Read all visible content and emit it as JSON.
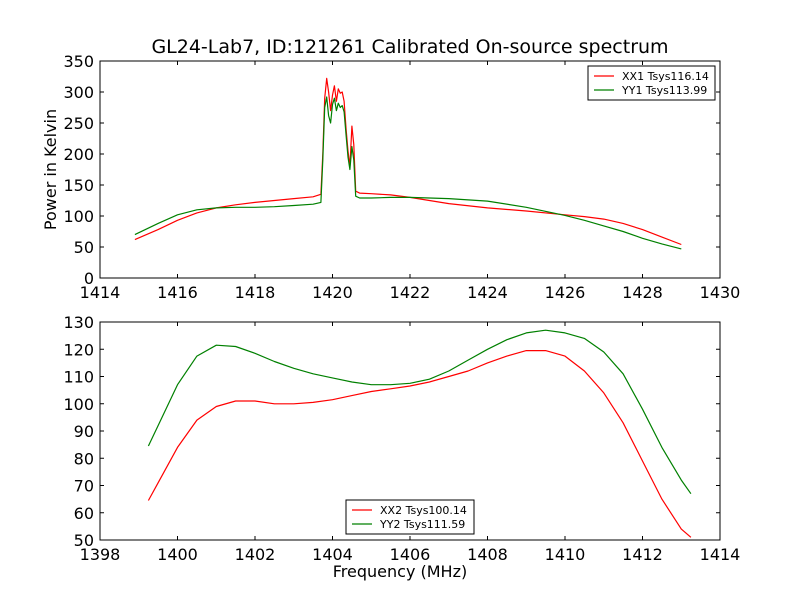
{
  "figure": {
    "title": "GL24-Lab7, ID:121261 Calibrated On-source spectrum"
  },
  "chart_data": [
    {
      "type": "line",
      "title": "GL24-Lab7, ID:121261 Calibrated On-source spectrum",
      "xlabel": "",
      "ylabel": "Power in Kelvin",
      "xlim": [
        1414,
        1430
      ],
      "ylim": [
        0,
        350
      ],
      "xticks": [
        1414,
        1416,
        1418,
        1420,
        1422,
        1424,
        1426,
        1428,
        1430
      ],
      "yticks": [
        0,
        50,
        100,
        150,
        200,
        250,
        300,
        350
      ],
      "grid": false,
      "legend_position": "top-right",
      "series": [
        {
          "name": "XX1 Tsys116.14",
          "color": "#ff0000",
          "x": [
            1414.9,
            1415.5,
            1416.0,
            1416.5,
            1417.0,
            1417.5,
            1418.0,
            1418.5,
            1419.0,
            1419.5,
            1419.7,
            1419.75,
            1419.8,
            1419.85,
            1419.9,
            1419.95,
            1420.0,
            1420.05,
            1420.1,
            1420.15,
            1420.2,
            1420.25,
            1420.3,
            1420.35,
            1420.4,
            1420.45,
            1420.5,
            1420.55,
            1420.6,
            1420.7,
            1421.0,
            1421.5,
            1422.0,
            1422.5,
            1423.0,
            1424.0,
            1425.0,
            1426.0,
            1426.5,
            1427.0,
            1427.5,
            1428.0,
            1428.5,
            1429.0
          ],
          "y": [
            62,
            78,
            93,
            105,
            113,
            118,
            122,
            125,
            128,
            131,
            135,
            200,
            290,
            322,
            300,
            270,
            295,
            310,
            285,
            305,
            298,
            300,
            285,
            240,
            205,
            180,
            245,
            215,
            140,
            137,
            136,
            134,
            130,
            125,
            120,
            113,
            108,
            102,
            99,
            95,
            88,
            78,
            66,
            54
          ]
        },
        {
          "name": "YY1 Tsys113.99",
          "color": "#008000",
          "x": [
            1414.9,
            1415.5,
            1416.0,
            1416.5,
            1417.0,
            1417.5,
            1418.0,
            1418.5,
            1419.0,
            1419.5,
            1419.7,
            1419.75,
            1419.8,
            1419.85,
            1419.9,
            1419.95,
            1420.0,
            1420.05,
            1420.1,
            1420.15,
            1420.2,
            1420.25,
            1420.3,
            1420.35,
            1420.4,
            1420.45,
            1420.5,
            1420.55,
            1420.6,
            1420.7,
            1421.0,
            1421.5,
            1422.0,
            1422.5,
            1423.0,
            1424.0,
            1425.0,
            1426.0,
            1426.5,
            1427.0,
            1427.5,
            1428.0,
            1428.5,
            1429.0
          ],
          "y": [
            70,
            88,
            102,
            110,
            113,
            114,
            114,
            115,
            117,
            119,
            122,
            190,
            275,
            292,
            262,
            250,
            280,
            290,
            270,
            282,
            275,
            278,
            268,
            230,
            195,
            175,
            212,
            190,
            132,
            129,
            129,
            130,
            130,
            129,
            128,
            124,
            114,
            101,
            93,
            84,
            75,
            64,
            55,
            47
          ]
        }
      ]
    },
    {
      "type": "line",
      "title": "",
      "xlabel": "Frequency (MHz)",
      "ylabel": "",
      "xlim": [
        1398,
        1414
      ],
      "ylim": [
        50,
        130
      ],
      "xticks": [
        1398,
        1400,
        1402,
        1404,
        1406,
        1408,
        1410,
        1412,
        1414
      ],
      "yticks": [
        50,
        60,
        70,
        80,
        90,
        100,
        110,
        120,
        130
      ],
      "grid": false,
      "legend_position": "bottom-center",
      "series": [
        {
          "name": "XX2 Tsys100.14",
          "color": "#ff0000",
          "x": [
            1399.25,
            1399.5,
            1400.0,
            1400.5,
            1401.0,
            1401.5,
            1402.0,
            1402.5,
            1403.0,
            1403.5,
            1404.0,
            1404.5,
            1405.0,
            1405.5,
            1406.0,
            1406.5,
            1407.0,
            1407.5,
            1408.0,
            1408.5,
            1409.0,
            1409.5,
            1410.0,
            1410.5,
            1411.0,
            1411.5,
            1412.0,
            1412.5,
            1413.0,
            1413.25
          ],
          "y": [
            64.5,
            71,
            84,
            94,
            99,
            101,
            101,
            100,
            100,
            100.5,
            101.5,
            103,
            104.5,
            105.5,
            106.5,
            108,
            110,
            112,
            115,
            117.5,
            119.5,
            119.5,
            117.5,
            112,
            104,
            93,
            79,
            65,
            54,
            51
          ]
        },
        {
          "name": "YY2 Tsys111.59",
          "color": "#008000",
          "x": [
            1399.25,
            1399.5,
            1400.0,
            1400.5,
            1401.0,
            1401.5,
            1402.0,
            1402.5,
            1403.0,
            1403.5,
            1404.0,
            1404.5,
            1405.0,
            1405.5,
            1406.0,
            1406.5,
            1407.0,
            1407.5,
            1408.0,
            1408.5,
            1409.0,
            1409.5,
            1410.0,
            1410.5,
            1411.0,
            1411.5,
            1412.0,
            1412.5,
            1413.0,
            1413.25
          ],
          "y": [
            84.5,
            92,
            107,
            117.5,
            121.5,
            121,
            118.5,
            115.5,
            113,
            111,
            109.5,
            108,
            107,
            107,
            107.5,
            109,
            112,
            116,
            120,
            123.5,
            126,
            127,
            126,
            124,
            119,
            111,
            98,
            84,
            72,
            67
          ]
        }
      ]
    }
  ]
}
